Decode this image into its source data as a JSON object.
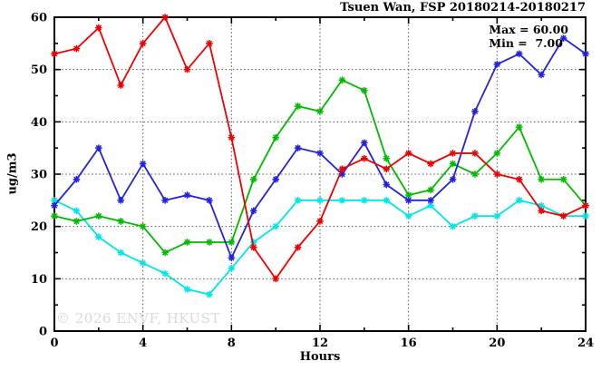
{
  "title": "Tsuen Wan, FSP 20180214-20180217",
  "annotation": {
    "max_label": "Max = 60.00",
    "min_label": "Min =  7.00"
  },
  "watermark": "© 2026 ENVF, HKUST",
  "colors": {
    "series_red": "#ee0000",
    "series_blue": "#2222dd",
    "series_green": "#00bb00",
    "series_cyan": "#00e6e6",
    "axis": "#000000",
    "grid": "#555555",
    "watermark": "#dadada"
  },
  "chart_data": {
    "type": "line",
    "title": "Tsuen Wan, FSP 20180214-20180217",
    "xlabel": "Hours",
    "ylabel": "ug/m3",
    "xlim": [
      0,
      24
    ],
    "ylim": [
      0,
      60
    ],
    "xticks": [
      0,
      4,
      8,
      12,
      16,
      20,
      24
    ],
    "yticks": [
      0,
      10,
      20,
      30,
      40,
      50,
      60
    ],
    "x_minor_step": 2,
    "y_minor_step": 5,
    "grid": true,
    "legend_position": "none",
    "marker": "star",
    "x": [
      0,
      1,
      2,
      3,
      4,
      5,
      6,
      7,
      8,
      9,
      10,
      11,
      12,
      13,
      14,
      15,
      16,
      17,
      18,
      19,
      20,
      21,
      22,
      23,
      24
    ],
    "series": [
      {
        "name": "cyan",
        "color": "#00e6e6",
        "values": [
          25,
          23,
          18,
          15,
          13,
          11,
          8,
          7,
          12,
          17,
          20,
          25,
          25,
          25,
          25,
          25,
          22,
          24,
          20,
          22,
          22,
          25,
          24,
          22,
          22
        ]
      },
      {
        "name": "green",
        "color": "#00bb00",
        "values": [
          22,
          21,
          22,
          21,
          20,
          15,
          17,
          17,
          17,
          29,
          37,
          43,
          42,
          48,
          46,
          33,
          26,
          27,
          32,
          30,
          34,
          39,
          29,
          29,
          24
        ]
      },
      {
        "name": "blue",
        "color": "#2222dd",
        "values": [
          24,
          29,
          35,
          25,
          32,
          25,
          26,
          25,
          14,
          23,
          29,
          35,
          34,
          30,
          36,
          28,
          25,
          25,
          29,
          42,
          51,
          53,
          49,
          56,
          53
        ]
      },
      {
        "name": "red",
        "color": "#ee0000",
        "values": [
          53,
          54,
          58,
          47,
          55,
          60,
          50,
          55,
          37,
          16,
          10,
          16,
          21,
          31,
          33,
          31,
          34,
          32,
          34,
          34,
          30,
          29,
          23,
          22,
          24
        ]
      }
    ],
    "stats": {
      "max": 60.0,
      "min": 7.0
    }
  }
}
